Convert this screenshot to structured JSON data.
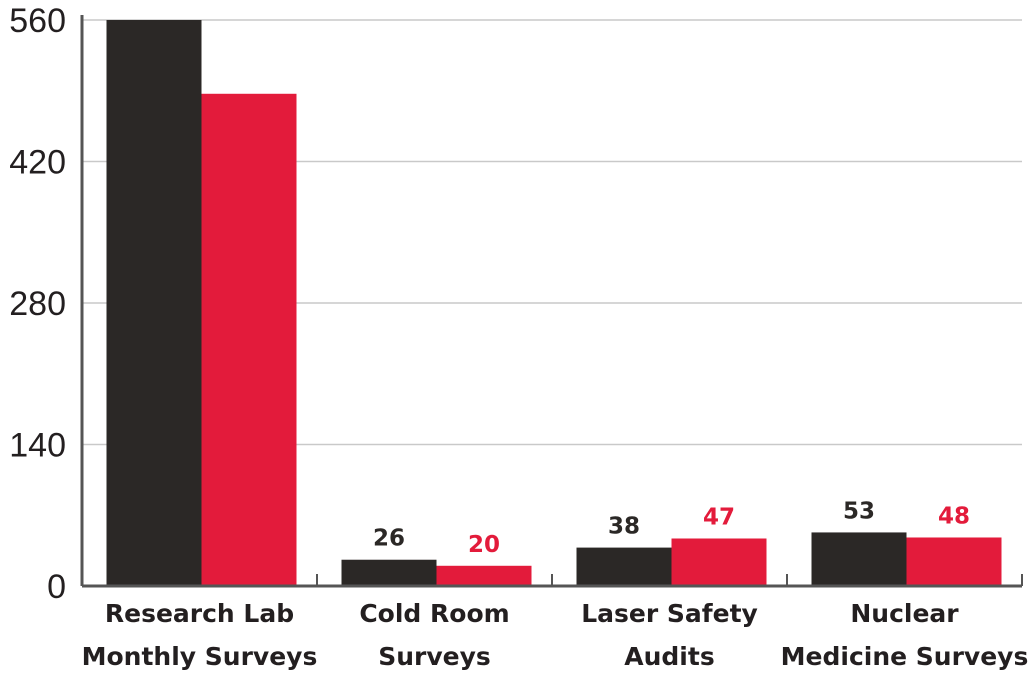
{
  "chart_data": {
    "type": "bar",
    "categories": [
      [
        "Research Lab",
        "Monthly Surveys"
      ],
      [
        "Cold Room",
        "Surveys"
      ],
      [
        "Laser Safety",
        "Audits"
      ],
      [
        "Nuclear",
        "Medicine Surveys"
      ]
    ],
    "series": [
      {
        "color": "#2b2826",
        "values": [
          560,
          26,
          38,
          53
        ],
        "labels": [
          "",
          "26",
          "38",
          "53"
        ]
      },
      {
        "color": "#e31b3b",
        "values": [
          487,
          20,
          47,
          48
        ],
        "labels": [
          "",
          "20",
          "47",
          "48"
        ]
      }
    ],
    "yticks": [
      "0",
      "140",
      "280",
      "420",
      "560"
    ],
    "ylim": [
      0,
      560
    ],
    "grid": true,
    "legend": "none",
    "title": "",
    "xlabel": "",
    "ylabel": ""
  }
}
